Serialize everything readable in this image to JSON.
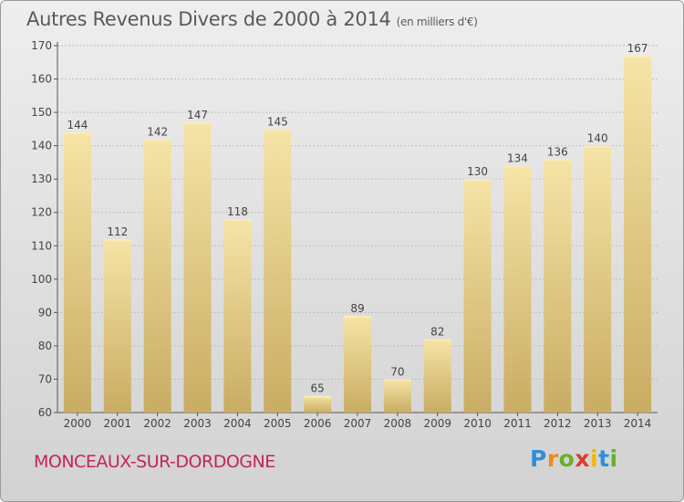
{
  "chart_data": {
    "type": "bar",
    "title": "Autres Revenus Divers de 2000 à 2014",
    "subtitle": "(en milliers d'€)",
    "categories": [
      "2000",
      "2001",
      "2002",
      "2003",
      "2004",
      "2005",
      "2006",
      "2007",
      "2008",
      "2009",
      "2010",
      "2011",
      "2012",
      "2013",
      "2014"
    ],
    "values": [
      144,
      112,
      142,
      147,
      118,
      145,
      65,
      89,
      70,
      82,
      130,
      134,
      136,
      140,
      167
    ],
    "ylim": [
      60,
      170
    ],
    "yticks": [
      60,
      70,
      80,
      90,
      100,
      110,
      120,
      130,
      140,
      150,
      160,
      170
    ],
    "grid": true,
    "bar_color": "#e8cf86",
    "bar_highlight": "#f6e4a6",
    "bar_shadow": "#c9ac62"
  },
  "commune": "MONCEAUX-SUR-DORDOGNE",
  "logo": {
    "letters": [
      "P",
      "r",
      "o",
      "x",
      "i",
      "t",
      "i"
    ],
    "colors": [
      "#2f8fd8",
      "#f08a1c",
      "#69b02b",
      "#e23a2c",
      "#f2b705",
      "#2f8fd8",
      "#69b02b"
    ]
  }
}
